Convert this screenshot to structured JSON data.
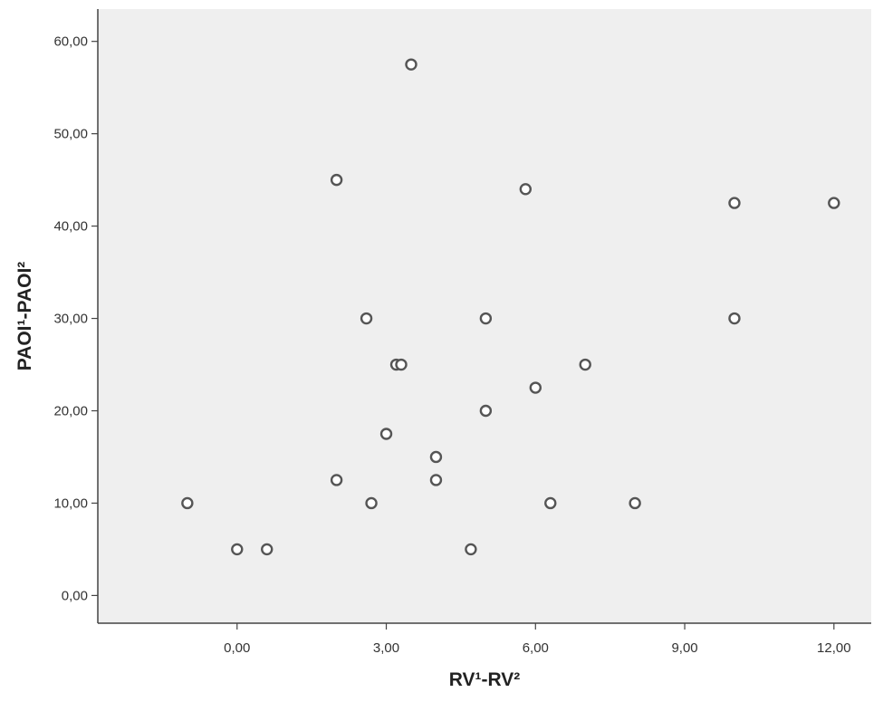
{
  "chart_data": {
    "type": "scatter",
    "title": "",
    "xlabel": "RV¹-RV²",
    "ylabel": "PAOI¹-PAOI²",
    "xlim": [
      -2.8,
      12.75
    ],
    "ylim": [
      -3.0,
      63.5
    ],
    "xticks": [
      {
        "value": 0,
        "label": "0,00"
      },
      {
        "value": 3,
        "label": "3,00"
      },
      {
        "value": 6,
        "label": "6,00"
      },
      {
        "value": 9,
        "label": "9,00"
      },
      {
        "value": 12,
        "label": "12,00"
      }
    ],
    "yticks": [
      {
        "value": 0,
        "label": "0,00"
      },
      {
        "value": 10,
        "label": "10,00"
      },
      {
        "value": 20,
        "label": "20,00"
      },
      {
        "value": 30,
        "label": "30,00"
      },
      {
        "value": 40,
        "label": "40,00"
      },
      {
        "value": 50,
        "label": "50,00"
      },
      {
        "value": 60,
        "label": "60,00"
      }
    ],
    "grid": false,
    "legend": "none",
    "colors": {
      "plot_bg": "#efefef",
      "axis": "#444444",
      "marker_stroke": "#555555",
      "marker_fill": "#ffffff"
    },
    "points": [
      {
        "x": -1.0,
        "y": 10
      },
      {
        "x": 0.0,
        "y": 5
      },
      {
        "x": 0.6,
        "y": 5
      },
      {
        "x": 2.0,
        "y": 12.5
      },
      {
        "x": 2.0,
        "y": 45
      },
      {
        "x": 2.6,
        "y": 30
      },
      {
        "x": 2.7,
        "y": 10
      },
      {
        "x": 3.0,
        "y": 17.5
      },
      {
        "x": 3.2,
        "y": 25
      },
      {
        "x": 3.3,
        "y": 25
      },
      {
        "x": 3.5,
        "y": 57.5
      },
      {
        "x": 4.0,
        "y": 15
      },
      {
        "x": 4.0,
        "y": 12.5
      },
      {
        "x": 4.7,
        "y": 5
      },
      {
        "x": 5.0,
        "y": 30
      },
      {
        "x": 5.0,
        "y": 20
      },
      {
        "x": 5.8,
        "y": 44
      },
      {
        "x": 6.0,
        "y": 22.5
      },
      {
        "x": 6.3,
        "y": 10
      },
      {
        "x": 7.0,
        "y": 25
      },
      {
        "x": 8.0,
        "y": 10
      },
      {
        "x": 10.0,
        "y": 42.5
      },
      {
        "x": 10.0,
        "y": 30
      },
      {
        "x": 12.0,
        "y": 42.5
      }
    ]
  }
}
